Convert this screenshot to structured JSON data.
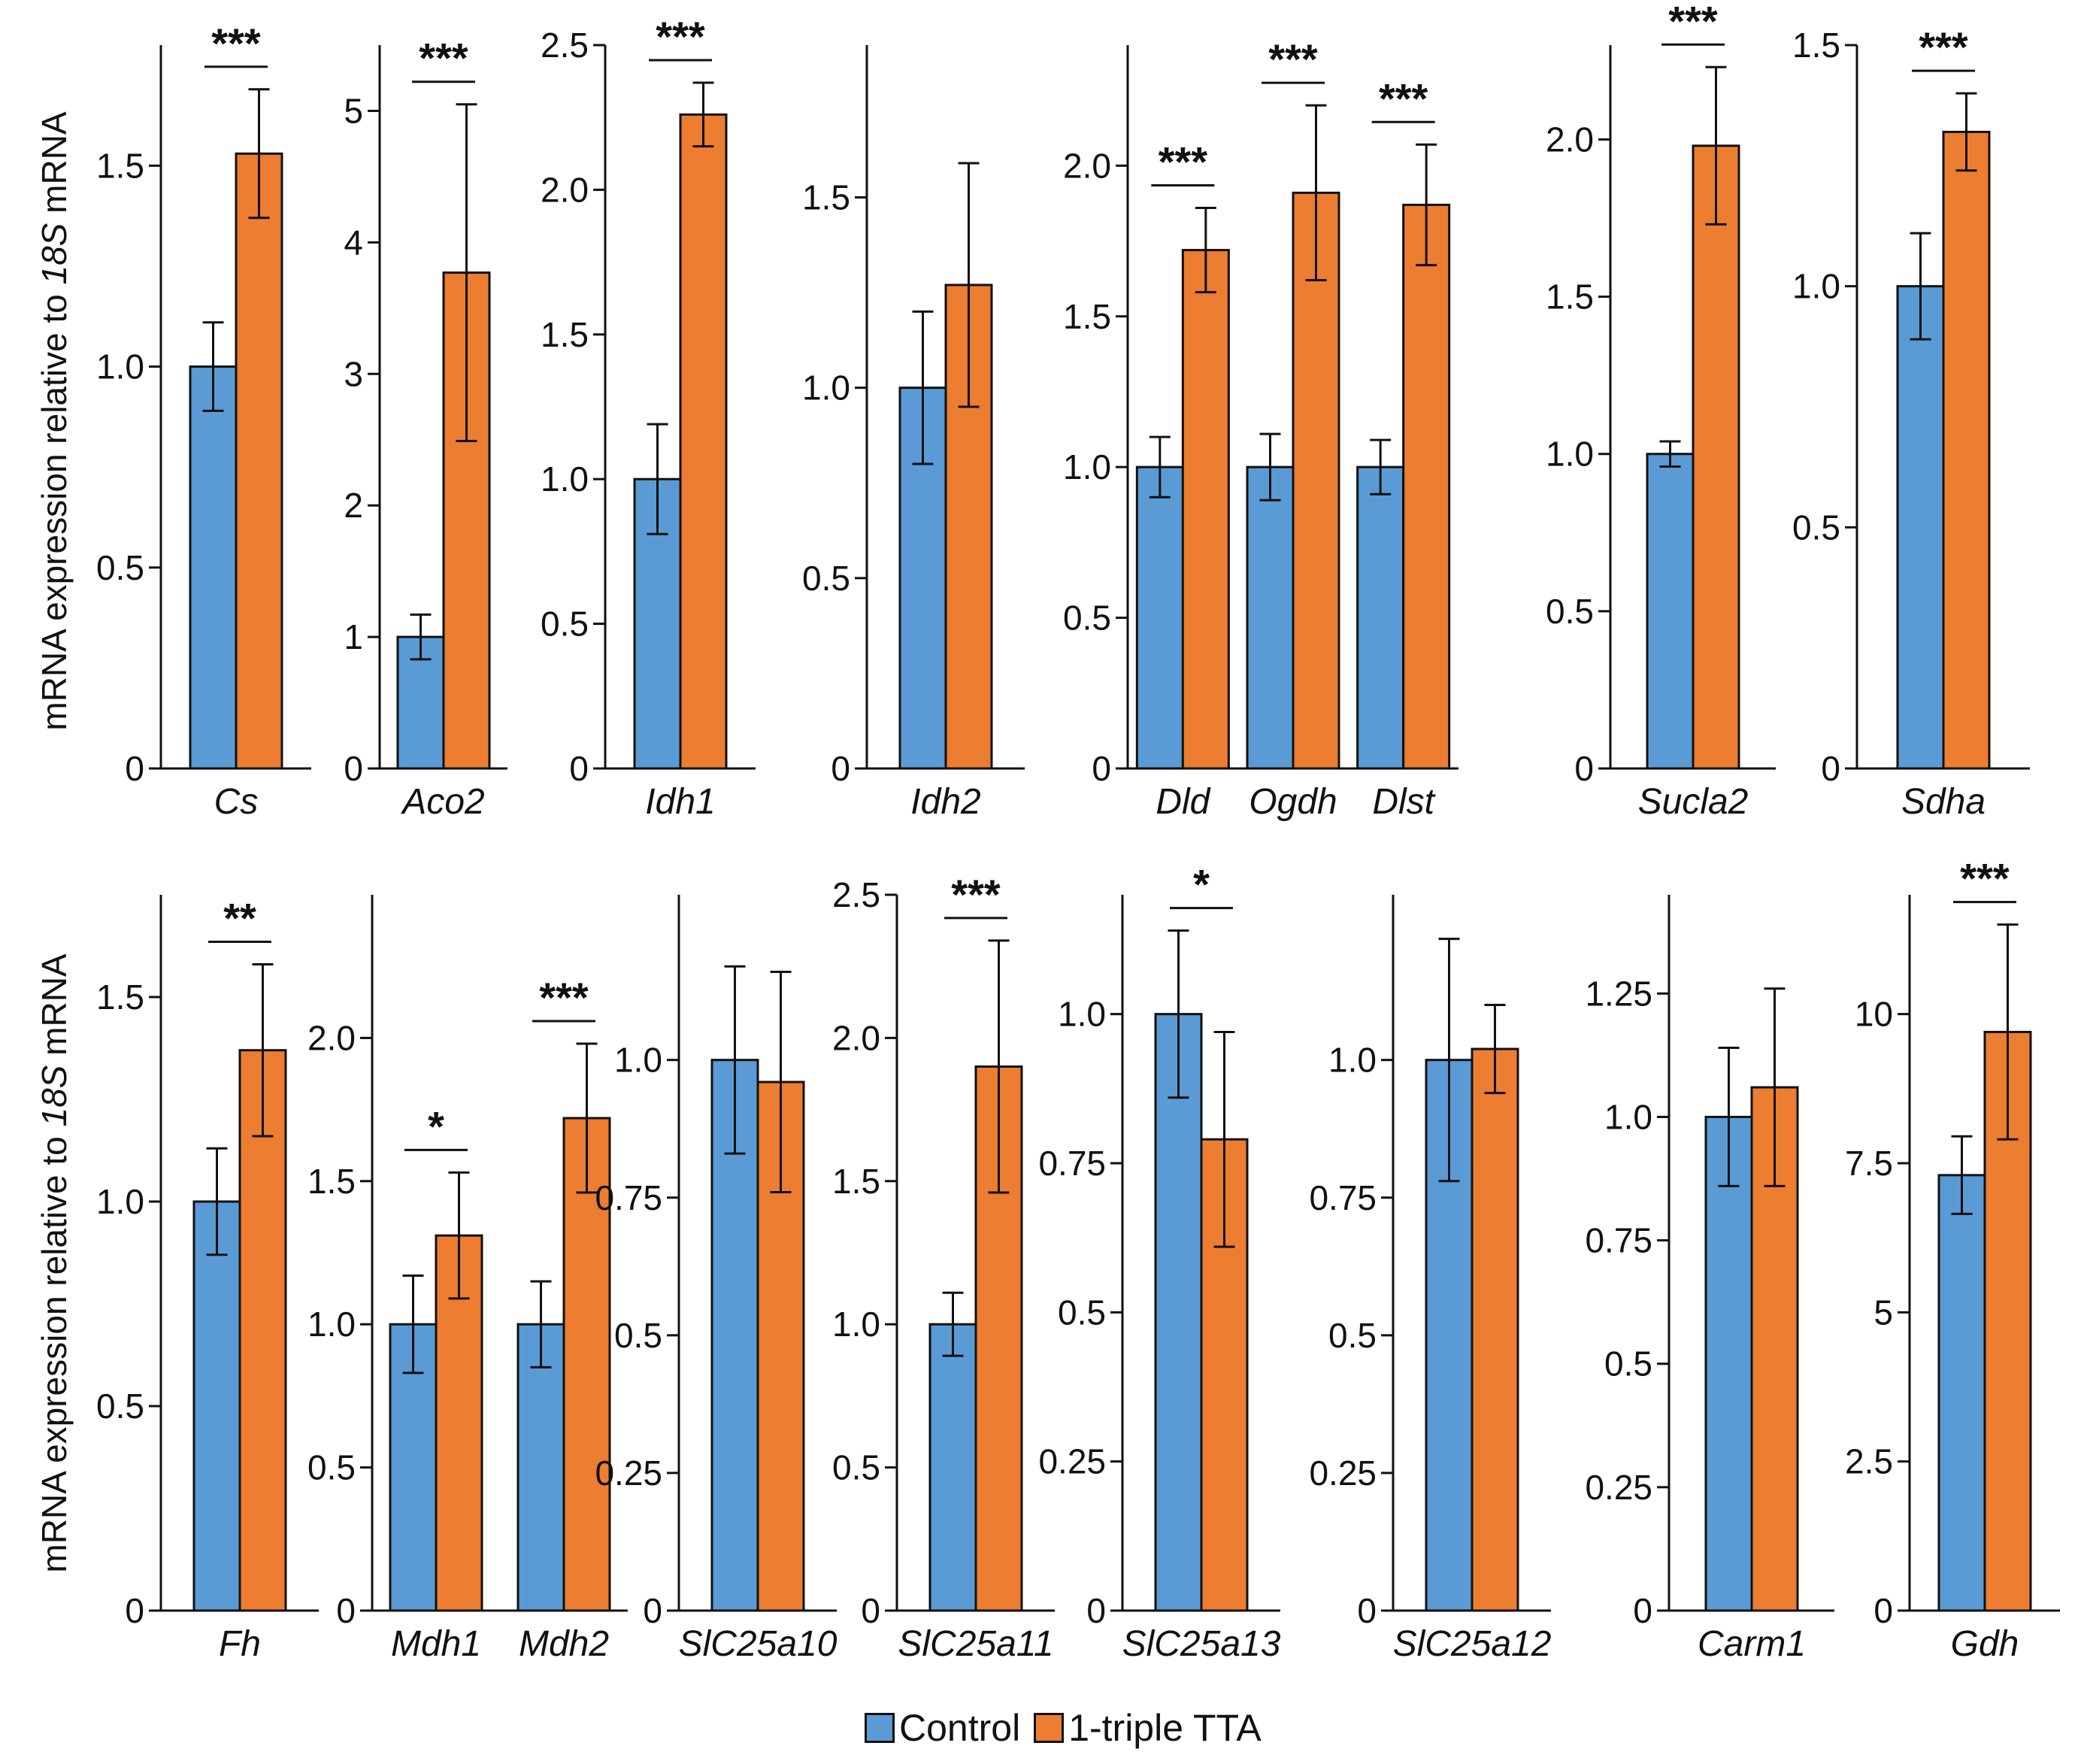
{
  "legend": {
    "control_label": "Control",
    "treatment_label": "1-triple TTA",
    "control_color": "#5b9bd5",
    "treatment_color": "#ed7d31"
  },
  "y_axis_label": {
    "pre": "mRNA expression relative to ",
    "italic": "18S",
    "post": " mRNA"
  },
  "chart_data": [
    {
      "type": "bar",
      "title": "",
      "row": "top",
      "ylim": [
        0,
        1.8
      ],
      "yticks": [
        "0",
        "0.5",
        "1.0",
        "1.5"
      ],
      "ytick_values": [
        0,
        0.5,
        1.0,
        1.5
      ],
      "categories": [
        "Cs"
      ],
      "series": [
        {
          "name": "Control",
          "values": [
            1.0
          ],
          "errors": [
            0.11
          ]
        },
        {
          "name": "1-triple TTA",
          "values": [
            1.53
          ],
          "errors": [
            0.16
          ]
        }
      ],
      "significance": [
        "***"
      ]
    },
    {
      "type": "bar",
      "title": "",
      "row": "top",
      "ylim": [
        0,
        5.5
      ],
      "yticks": [
        "0",
        "1",
        "2",
        "3",
        "4",
        "5"
      ],
      "ytick_values": [
        0,
        1,
        2,
        3,
        4,
        5
      ],
      "categories": [
        "Aco2"
      ],
      "series": [
        {
          "name": "Control",
          "values": [
            1.0
          ],
          "errors": [
            0.17
          ]
        },
        {
          "name": "1-triple TTA",
          "values": [
            3.77
          ],
          "errors": [
            1.28
          ]
        }
      ],
      "significance": [
        "***"
      ]
    },
    {
      "type": "bar",
      "title": "",
      "row": "top",
      "ylim": [
        0,
        2.5
      ],
      "yticks": [
        "0",
        "0.5",
        "1.0",
        "1.5",
        "2.0",
        "2.5"
      ],
      "ytick_values": [
        0,
        0.5,
        1.0,
        1.5,
        2.0,
        2.5
      ],
      "categories": [
        "Idh1"
      ],
      "series": [
        {
          "name": "Control",
          "values": [
            1.0
          ],
          "errors": [
            0.19
          ]
        },
        {
          "name": "1-triple TTA",
          "values": [
            2.26
          ],
          "errors": [
            0.11
          ]
        }
      ],
      "significance": [
        "***"
      ]
    },
    {
      "type": "bar",
      "title": "",
      "row": "top",
      "ylim": [
        0,
        1.9
      ],
      "yticks": [
        "0",
        "0.5",
        "1.0",
        "1.5"
      ],
      "ytick_values": [
        0,
        0.5,
        1.0,
        1.5
      ],
      "categories": [
        "Idh2"
      ],
      "series": [
        {
          "name": "Control",
          "values": [
            1.0
          ],
          "errors": [
            0.2
          ]
        },
        {
          "name": "1-triple TTA",
          "values": [
            1.27
          ],
          "errors": [
            0.32
          ]
        }
      ],
      "significance": [
        ""
      ]
    },
    {
      "type": "bar",
      "title": "",
      "row": "top",
      "ylim": [
        0,
        2.4
      ],
      "yticks": [
        "0",
        "0.5",
        "1.0",
        "1.5",
        "2.0"
      ],
      "ytick_values": [
        0,
        0.5,
        1.0,
        1.5,
        2.0
      ],
      "categories": [
        "Dld",
        "Ogdh",
        "Dlst"
      ],
      "series": [
        {
          "name": "Control",
          "values": [
            1.0,
            1.0,
            1.0
          ],
          "errors": [
            0.1,
            0.11,
            0.09
          ]
        },
        {
          "name": "1-triple TTA",
          "values": [
            1.72,
            1.91,
            1.87
          ],
          "errors": [
            0.14,
            0.29,
            0.2
          ]
        }
      ],
      "significance": [
        "***",
        "***",
        "***"
      ]
    },
    {
      "type": "bar",
      "title": "",
      "row": "top",
      "ylim": [
        0,
        2.3
      ],
      "yticks": [
        "0",
        "0.5",
        "1.0",
        "1.5",
        "2.0"
      ],
      "ytick_values": [
        0,
        0.5,
        1.0,
        1.5,
        2.0
      ],
      "categories": [
        "Sucla2"
      ],
      "series": [
        {
          "name": "Control",
          "values": [
            1.0
          ],
          "errors": [
            0.04
          ]
        },
        {
          "name": "1-triple TTA",
          "values": [
            1.98
          ],
          "errors": [
            0.25
          ]
        }
      ],
      "significance": [
        "***"
      ]
    },
    {
      "type": "bar",
      "title": "",
      "row": "top",
      "ylim": [
        0,
        1.5
      ],
      "yticks": [
        "0",
        "0.5",
        "1.0",
        "1.5"
      ],
      "ytick_values": [
        0,
        0.5,
        1.0,
        1.5
      ],
      "categories": [
        "Sdha"
      ],
      "series": [
        {
          "name": "Control",
          "values": [
            1.0
          ],
          "errors": [
            0.11
          ]
        },
        {
          "name": "1-triple TTA",
          "values": [
            1.32
          ],
          "errors": [
            0.08
          ]
        }
      ],
      "significance": [
        "***"
      ]
    },
    {
      "type": "bar",
      "title": "",
      "row": "bottom",
      "ylim": [
        0,
        1.75
      ],
      "yticks": [
        "0",
        "0.5",
        "1.0",
        "1.5"
      ],
      "ytick_values": [
        0,
        0.5,
        1.0,
        1.5
      ],
      "categories": [
        "Fh"
      ],
      "series": [
        {
          "name": "Control",
          "values": [
            1.0
          ],
          "errors": [
            0.13
          ]
        },
        {
          "name": "1-triple TTA",
          "values": [
            1.37
          ],
          "errors": [
            0.21
          ]
        }
      ],
      "significance": [
        "**"
      ]
    },
    {
      "type": "bar",
      "title": "",
      "row": "bottom",
      "ylim": [
        0,
        2.5
      ],
      "yticks": [
        "0",
        "0.5",
        "1.0",
        "1.5",
        "2.0"
      ],
      "ytick_values": [
        0,
        0.5,
        1.0,
        1.5,
        2.0
      ],
      "categories": [
        "Mdh1",
        "Mdh2"
      ],
      "series": [
        {
          "name": "Control",
          "values": [
            1.0,
            1.0
          ],
          "errors": [
            0.17,
            0.15
          ]
        },
        {
          "name": "1-triple TTA",
          "values": [
            1.31,
            1.72
          ],
          "errors": [
            0.22,
            0.26
          ]
        }
      ],
      "significance": [
        "*",
        "***"
      ]
    },
    {
      "type": "bar",
      "title": "",
      "row": "bottom",
      "ylim": [
        0,
        1.3
      ],
      "yticks": [
        "0",
        "0.25",
        "0.5",
        "0.75",
        "1.0"
      ],
      "ytick_values": [
        0,
        0.25,
        0.5,
        0.75,
        1.0
      ],
      "categories": [
        "SlC25a10"
      ],
      "series": [
        {
          "name": "Control",
          "values": [
            1.0
          ],
          "errors": [
            0.17
          ]
        },
        {
          "name": "1-triple TTA",
          "values": [
            0.96
          ],
          "errors": [
            0.2
          ]
        }
      ],
      "significance": [
        ""
      ]
    },
    {
      "type": "bar",
      "title": "",
      "row": "bottom",
      "ylim": [
        0,
        2.5
      ],
      "yticks": [
        "0",
        "0.5",
        "1.0",
        "1.5",
        "2.0",
        "2.5"
      ],
      "ytick_values": [
        0,
        0.5,
        1.0,
        1.5,
        2.0,
        2.5
      ],
      "categories": [
        "SlC25a11"
      ],
      "series": [
        {
          "name": "Control",
          "values": [
            1.0
          ],
          "errors": [
            0.11
          ]
        },
        {
          "name": "1-triple TTA",
          "values": [
            1.9
          ],
          "errors": [
            0.44
          ]
        }
      ],
      "significance": [
        "***"
      ]
    },
    {
      "type": "bar",
      "title": "",
      "row": "bottom",
      "ylim": [
        0,
        1.2
      ],
      "yticks": [
        "0",
        "0.25",
        "0.5",
        "0.75",
        "1.0"
      ],
      "ytick_values": [
        0,
        0.25,
        0.5,
        0.75,
        1.0
      ],
      "categories": [
        "SlC25a13"
      ],
      "series": [
        {
          "name": "Control",
          "values": [
            1.0
          ],
          "errors": [
            0.14
          ]
        },
        {
          "name": "1-triple TTA",
          "values": [
            0.79
          ],
          "errors": [
            0.18
          ]
        }
      ],
      "significance": [
        "*"
      ]
    },
    {
      "type": "bar",
      "title": "",
      "row": "bottom",
      "ylim": [
        0,
        1.3
      ],
      "yticks": [
        "0",
        "0.25",
        "0.5",
        "0.75",
        "1.0"
      ],
      "ytick_values": [
        0,
        0.25,
        0.5,
        0.75,
        1.0
      ],
      "categories": [
        "SlC25a12"
      ],
      "series": [
        {
          "name": "Control",
          "values": [
            1.0
          ],
          "errors": [
            0.22
          ]
        },
        {
          "name": "1-triple TTA",
          "values": [
            1.02
          ],
          "errors": [
            0.08
          ]
        }
      ],
      "significance": [
        ""
      ]
    },
    {
      "type": "bar",
      "title": "",
      "row": "bottom",
      "ylim": [
        0,
        1.45
      ],
      "yticks": [
        "0",
        "0.25",
        "0.5",
        "0.75",
        "1.0",
        "1.25"
      ],
      "ytick_values": [
        0,
        0.25,
        0.5,
        0.75,
        1.0,
        1.25
      ],
      "categories": [
        "Carm1"
      ],
      "series": [
        {
          "name": "Control",
          "values": [
            1.0
          ],
          "errors": [
            0.14
          ]
        },
        {
          "name": "1-triple TTA",
          "values": [
            1.06
          ],
          "errors": [
            0.2
          ]
        }
      ],
      "significance": [
        ""
      ]
    },
    {
      "type": "bar",
      "title": "",
      "row": "bottom",
      "ylim": [
        0,
        12
      ],
      "yticks": [
        "0",
        "2.5",
        "5",
        "7.5",
        "10"
      ],
      "ytick_values": [
        0,
        2.5,
        5,
        7.5,
        10
      ],
      "categories": [
        "Gdh"
      ],
      "series": [
        {
          "name": "Control",
          "values": [
            7.3
          ],
          "errors": [
            0.65
          ]
        },
        {
          "name": "1-triple TTA",
          "values": [
            9.7
          ],
          "errors": [
            1.8
          ]
        }
      ],
      "significance": [
        "***"
      ]
    }
  ]
}
